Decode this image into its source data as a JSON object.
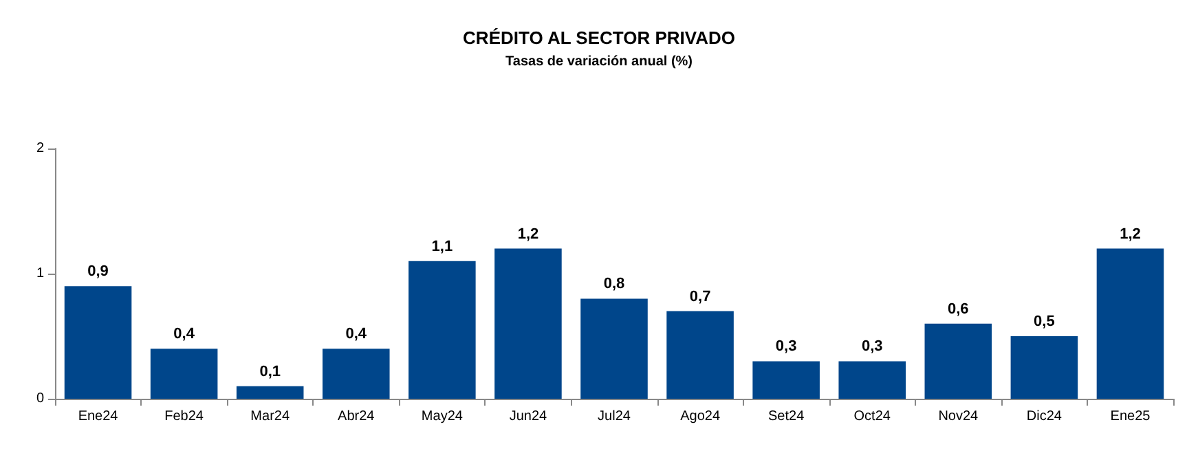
{
  "chart_data": {
    "type": "bar",
    "title": "CRÉDITO AL SECTOR PRIVADO",
    "subtitle": "Tasas de variación anual (%)",
    "categories": [
      "Ene24",
      "Feb24",
      "Mar24",
      "Abr24",
      "May24",
      "Jun24",
      "Jul24",
      "Ago24",
      "Set24",
      "Oct24",
      "Nov24",
      "Dic24",
      "Ene25"
    ],
    "values": [
      0.9,
      0.4,
      0.1,
      0.4,
      1.1,
      1.2,
      0.8,
      0.7,
      0.3,
      0.3,
      0.6,
      0.5,
      1.2
    ],
    "value_labels": [
      "0,9",
      "0,4",
      "0,1",
      "0,4",
      "1,1",
      "1,2",
      "0,8",
      "0,7",
      "0,3",
      "0,3",
      "0,6",
      "0,5",
      "1,2"
    ],
    "color": "#00468b",
    "ylim": [
      0,
      2
    ],
    "yticks": [
      0,
      1,
      2
    ],
    "grid": false
  }
}
